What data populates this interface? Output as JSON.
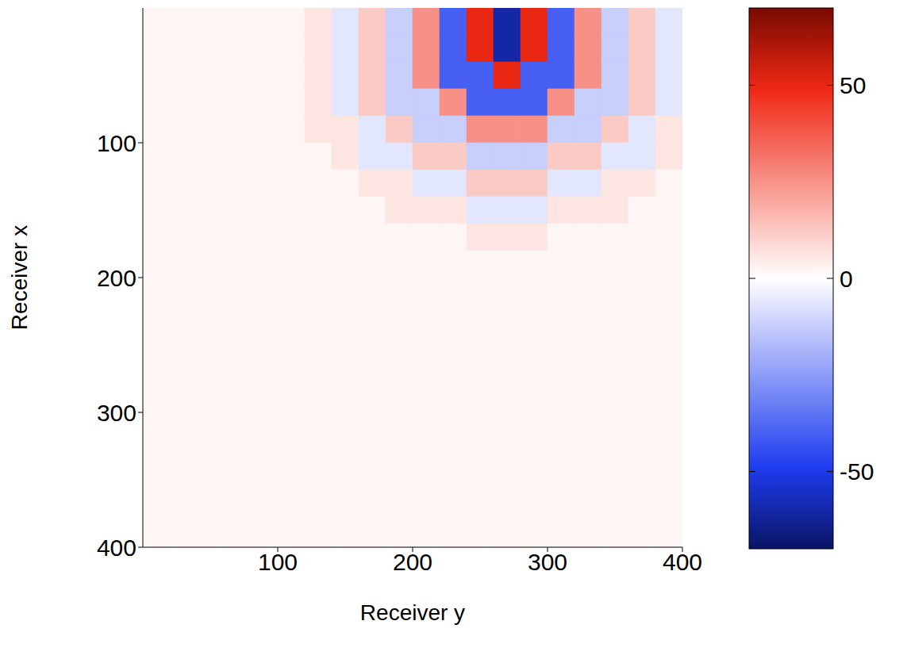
{
  "chart_data": {
    "type": "heatmap",
    "xlabel": "Receiver y",
    "ylabel": "Receiver x",
    "xlim": [
      0,
      400
    ],
    "xticks": [
      100,
      200,
      300,
      400
    ],
    "ylim": [
      0,
      400
    ],
    "yticks": [
      100,
      200,
      300,
      400
    ],
    "colorbar": {
      "range": [
        -70,
        70
      ],
      "ticks": [
        -50,
        0,
        50
      ]
    },
    "cells": [
      [
        2,
        2,
        2,
        2,
        2,
        2,
        6,
        -6,
        12,
        -12,
        25,
        -40,
        50,
        -60,
        50,
        -40,
        25,
        -12,
        12,
        -6
      ],
      [
        2,
        2,
        2,
        2,
        2,
        2,
        6,
        -6,
        12,
        -12,
        25,
        -40,
        50,
        -60,
        50,
        -40,
        25,
        -12,
        12,
        -6
      ],
      [
        2,
        2,
        2,
        2,
        2,
        2,
        6,
        -6,
        12,
        -12,
        25,
        -40,
        -40,
        50,
        -40,
        -40,
        25,
        -12,
        12,
        -6
      ],
      [
        2,
        2,
        2,
        2,
        2,
        2,
        6,
        -6,
        12,
        -12,
        -12,
        25,
        -40,
        -40,
        -40,
        25,
        -12,
        -12,
        12,
        -6
      ],
      [
        2,
        2,
        2,
        2,
        2,
        2,
        6,
        6,
        -6,
        12,
        -12,
        -12,
        25,
        25,
        25,
        -12,
        -12,
        12,
        -6,
        6
      ],
      [
        2,
        2,
        2,
        2,
        2,
        2,
        2,
        6,
        -6,
        -6,
        12,
        12,
        -12,
        -12,
        -12,
        12,
        12,
        -6,
        -6,
        6
      ],
      [
        2,
        2,
        2,
        2,
        2,
        2,
        2,
        2,
        6,
        6,
        -6,
        -6,
        12,
        12,
        12,
        -6,
        -6,
        6,
        6,
        2
      ],
      [
        2,
        2,
        2,
        2,
        2,
        2,
        2,
        2,
        2,
        6,
        6,
        6,
        -6,
        -6,
        -6,
        6,
        6,
        6,
        2,
        2
      ],
      [
        2,
        2,
        2,
        2,
        2,
        2,
        2,
        2,
        2,
        2,
        2,
        2,
        6,
        6,
        6,
        2,
        2,
        2,
        2,
        2
      ],
      [
        2,
        2,
        2,
        2,
        2,
        2,
        2,
        2,
        2,
        2,
        2,
        2,
        2,
        2,
        2,
        2,
        2,
        2,
        2,
        2
      ],
      [
        2,
        2,
        2,
        2,
        2,
        2,
        2,
        2,
        2,
        2,
        2,
        2,
        2,
        2,
        2,
        2,
        2,
        2,
        2,
        2
      ],
      [
        2,
        2,
        2,
        2,
        2,
        2,
        2,
        2,
        2,
        2,
        2,
        2,
        2,
        2,
        2,
        2,
        2,
        2,
        2,
        2
      ],
      [
        2,
        2,
        2,
        2,
        2,
        2,
        2,
        2,
        2,
        2,
        2,
        2,
        2,
        2,
        2,
        2,
        2,
        2,
        2,
        2
      ],
      [
        2,
        2,
        2,
        2,
        2,
        2,
        2,
        2,
        2,
        2,
        2,
        2,
        2,
        2,
        2,
        2,
        2,
        2,
        2,
        2
      ],
      [
        2,
        2,
        2,
        2,
        2,
        2,
        2,
        2,
        2,
        2,
        2,
        2,
        2,
        2,
        2,
        2,
        2,
        2,
        2,
        2
      ],
      [
        2,
        2,
        2,
        2,
        2,
        2,
        2,
        2,
        2,
        2,
        2,
        2,
        2,
        2,
        2,
        2,
        2,
        2,
        2,
        2
      ],
      [
        2,
        2,
        2,
        2,
        2,
        2,
        2,
        2,
        2,
        2,
        2,
        2,
        2,
        2,
        2,
        2,
        2,
        2,
        2,
        2
      ],
      [
        2,
        2,
        2,
        2,
        2,
        2,
        2,
        2,
        2,
        2,
        2,
        2,
        2,
        2,
        2,
        2,
        2,
        2,
        2,
        2
      ],
      [
        2,
        2,
        2,
        2,
        2,
        2,
        2,
        2,
        2,
        2,
        2,
        2,
        2,
        2,
        2,
        2,
        2,
        2,
        2,
        2
      ],
      [
        2,
        2,
        2,
        2,
        2,
        2,
        2,
        2,
        2,
        2,
        2,
        2,
        2,
        2,
        2,
        2,
        2,
        2,
        2,
        2
      ]
    ]
  }
}
